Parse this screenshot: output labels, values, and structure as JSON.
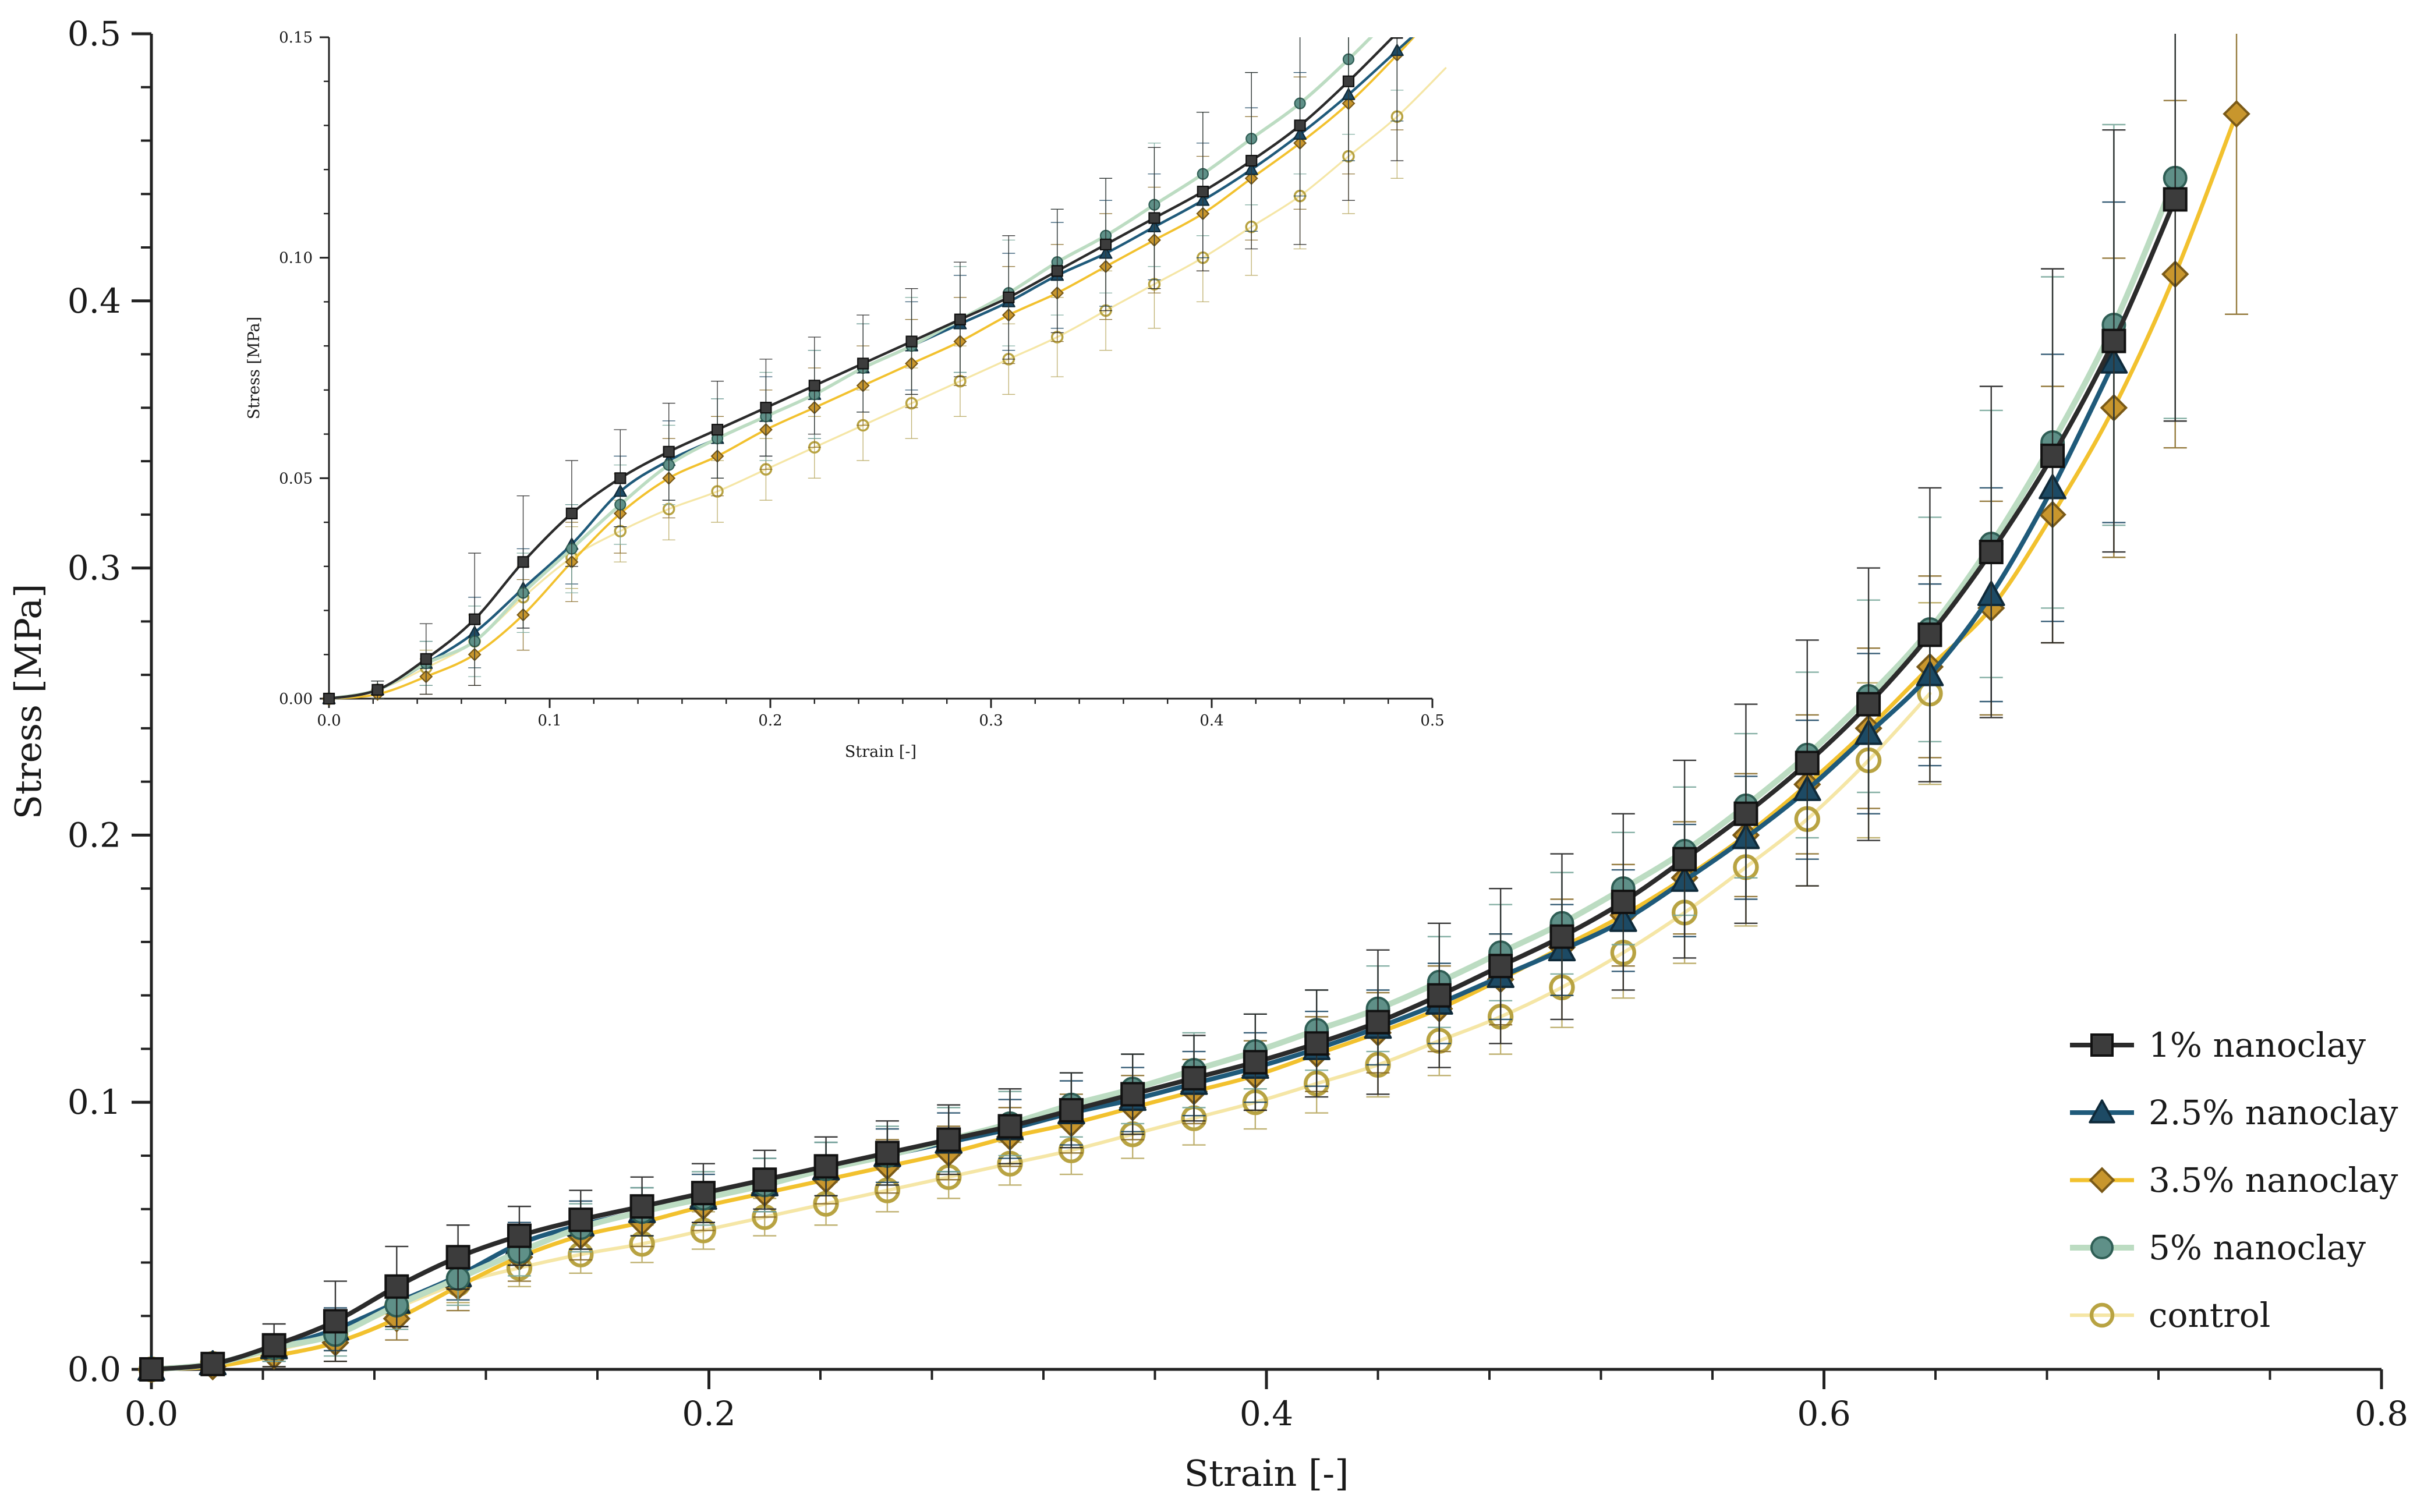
{
  "chart_data": [
    {
      "id": "main",
      "type": "line",
      "xlabel": "Strain [-]",
      "ylabel": "Stress [MPa]",
      "xlim": [
        0.0,
        0.8
      ],
      "ylim": [
        0.0,
        0.5
      ],
      "xticks": [
        "0.0",
        "0.2",
        "0.4",
        "0.6",
        "0.8"
      ],
      "yticks": [
        "0.0",
        "0.1",
        "0.2",
        "0.3",
        "0.4",
        "0.5"
      ],
      "grid": false,
      "legend_position": "bottom-right",
      "series": [
        {
          "name": "1% nanoclay",
          "marker": "square",
          "color": "#2b2b2b",
          "marker_fill": "#3a3a3a",
          "x": [
            0,
            0.022,
            0.044,
            0.066,
            0.088,
            0.11,
            0.132,
            0.154,
            0.176,
            0.198,
            0.22,
            0.242,
            0.264,
            0.286,
            0.308,
            0.33,
            0.352,
            0.374,
            0.396,
            0.418,
            0.44,
            0.462,
            0.484,
            0.506,
            0.528,
            0.55,
            0.572,
            0.594,
            0.616,
            0.638,
            0.66,
            0.682,
            0.704,
            0.726
          ],
          "y": [
            0,
            0.002,
            0.009,
            0.018,
            0.031,
            0.042,
            0.05,
            0.056,
            0.061,
            0.066,
            0.071,
            0.076,
            0.081,
            0.086,
            0.091,
            0.097,
            0.103,
            0.109,
            0.115,
            0.122,
            0.13,
            0.14,
            0.151,
            0.162,
            0.175,
            0.191,
            0.208,
            0.227,
            0.249,
            0.275,
            0.306,
            0.342,
            0.385,
            0.438
          ],
          "err": [
            0,
            0.002,
            0.008,
            0.015,
            0.015,
            0.012,
            0.011,
            0.011,
            0.011,
            0.011,
            0.011,
            0.011,
            0.012,
            0.013,
            0.014,
            0.014,
            0.015,
            0.016,
            0.018,
            0.02,
            0.027,
            0.027,
            0.029,
            0.031,
            0.033,
            0.037,
            0.041,
            0.046,
            0.051,
            0.055,
            0.062,
            0.07,
            0.079,
            0.083
          ]
        },
        {
          "name": "2.5% nanoclay",
          "marker": "triangle",
          "color": "#1f5a7a",
          "marker_fill": "#1f4f6a",
          "x": [
            0,
            0.022,
            0.044,
            0.066,
            0.088,
            0.11,
            0.132,
            0.154,
            0.176,
            0.198,
            0.22,
            0.242,
            0.264,
            0.286,
            0.308,
            0.33,
            0.352,
            0.374,
            0.396,
            0.418,
            0.44,
            0.462,
            0.484,
            0.506,
            0.528,
            0.55,
            0.572,
            0.594,
            0.616,
            0.638,
            0.66,
            0.682,
            0.704
          ],
          "y": [
            0,
            0.002,
            0.008,
            0.015,
            0.025,
            0.035,
            0.047,
            0.054,
            0.059,
            0.064,
            0.069,
            0.075,
            0.08,
            0.085,
            0.09,
            0.096,
            0.101,
            0.107,
            0.113,
            0.12,
            0.128,
            0.137,
            0.147,
            0.157,
            0.168,
            0.183,
            0.199,
            0.217,
            0.238,
            0.26,
            0.29,
            0.33,
            0.377
          ],
          "err": [
            0,
            0.002,
            0.005,
            0.008,
            0.009,
            0.009,
            0.008,
            0.009,
            0.009,
            0.009,
            0.01,
            0.01,
            0.01,
            0.011,
            0.011,
            0.012,
            0.012,
            0.012,
            0.013,
            0.014,
            0.014,
            0.015,
            0.016,
            0.017,
            0.019,
            0.021,
            0.023,
            0.026,
            0.03,
            0.034,
            0.04,
            0.05,
            0.06
          ]
        },
        {
          "name": "3.5% nanoclay",
          "marker": "diamond",
          "color": "#f2c12e",
          "marker_fill": "#c99a2e",
          "x": [
            0,
            0.022,
            0.044,
            0.066,
            0.088,
            0.11,
            0.132,
            0.154,
            0.176,
            0.198,
            0.22,
            0.242,
            0.264,
            0.286,
            0.308,
            0.33,
            0.352,
            0.374,
            0.396,
            0.418,
            0.44,
            0.462,
            0.484,
            0.506,
            0.528,
            0.55,
            0.572,
            0.594,
            0.616,
            0.638,
            0.66,
            0.682,
            0.704,
            0.726,
            0.748
          ],
          "y": [
            0,
            0.001,
            0.005,
            0.01,
            0.019,
            0.031,
            0.042,
            0.05,
            0.055,
            0.061,
            0.066,
            0.071,
            0.076,
            0.081,
            0.087,
            0.092,
            0.098,
            0.104,
            0.11,
            0.118,
            0.126,
            0.135,
            0.146,
            0.158,
            0.17,
            0.184,
            0.2,
            0.219,
            0.24,
            0.263,
            0.285,
            0.32,
            0.36,
            0.41,
            0.47
          ],
          "err": [
            0,
            0.001,
            0.004,
            0.007,
            0.008,
            0.009,
            0.009,
            0.009,
            0.009,
            0.009,
            0.009,
            0.009,
            0.01,
            0.01,
            0.011,
            0.011,
            0.012,
            0.012,
            0.013,
            0.014,
            0.015,
            0.016,
            0.017,
            0.018,
            0.019,
            0.021,
            0.023,
            0.026,
            0.03,
            0.034,
            0.04,
            0.048,
            0.056,
            0.065,
            0.075
          ]
        },
        {
          "name": "5% nanoclay",
          "marker": "circle",
          "color": "#bcdcc2",
          "marker_fill": "#5e8f88",
          "x": [
            0,
            0.022,
            0.044,
            0.066,
            0.088,
            0.11,
            0.132,
            0.154,
            0.176,
            0.198,
            0.22,
            0.242,
            0.264,
            0.286,
            0.308,
            0.33,
            0.352,
            0.374,
            0.396,
            0.418,
            0.44,
            0.462,
            0.484,
            0.506,
            0.528,
            0.55,
            0.572,
            0.594,
            0.616,
            0.638,
            0.66,
            0.682,
            0.704,
            0.726
          ],
          "y": [
            0,
            0.002,
            0.008,
            0.013,
            0.024,
            0.034,
            0.044,
            0.053,
            0.059,
            0.064,
            0.069,
            0.075,
            0.08,
            0.086,
            0.092,
            0.099,
            0.105,
            0.112,
            0.119,
            0.127,
            0.135,
            0.145,
            0.156,
            0.167,
            0.18,
            0.194,
            0.211,
            0.23,
            0.252,
            0.277,
            0.309,
            0.347,
            0.391,
            0.446
          ],
          "err": [
            0,
            0.002,
            0.005,
            0.008,
            0.009,
            0.01,
            0.009,
            0.009,
            0.009,
            0.01,
            0.01,
            0.01,
            0.011,
            0.012,
            0.012,
            0.012,
            0.013,
            0.014,
            0.014,
            0.015,
            0.016,
            0.017,
            0.018,
            0.019,
            0.021,
            0.024,
            0.027,
            0.031,
            0.036,
            0.042,
            0.05,
            0.062,
            0.075,
            0.09
          ]
        },
        {
          "name": "control",
          "marker": "circle-open",
          "color": "#f5e6a6",
          "marker_fill": "#b8a342",
          "x": [
            0,
            0.022,
            0.044,
            0.066,
            0.088,
            0.11,
            0.132,
            0.154,
            0.176,
            0.198,
            0.22,
            0.242,
            0.264,
            0.286,
            0.308,
            0.33,
            0.352,
            0.374,
            0.396,
            0.418,
            0.44,
            0.462,
            0.484,
            0.506,
            0.528,
            0.55,
            0.572,
            0.594,
            0.616,
            0.638
          ],
          "y": [
            0,
            0.002,
            0.007,
            0.013,
            0.023,
            0.032,
            0.038,
            0.043,
            0.047,
            0.052,
            0.057,
            0.062,
            0.067,
            0.072,
            0.077,
            0.082,
            0.088,
            0.094,
            0.1,
            0.107,
            0.114,
            0.123,
            0.132,
            0.143,
            0.156,
            0.171,
            0.188,
            0.206,
            0.228,
            0.253
          ],
          "err": [
            0,
            0.002,
            0.004,
            0.006,
            0.007,
            0.007,
            0.007,
            0.007,
            0.007,
            0.007,
            0.007,
            0.008,
            0.008,
            0.008,
            0.008,
            0.009,
            0.009,
            0.01,
            0.01,
            0.011,
            0.012,
            0.013,
            0.014,
            0.015,
            0.017,
            0.019,
            0.022,
            0.025,
            0.029,
            0.034
          ]
        }
      ]
    },
    {
      "id": "inset",
      "type": "line",
      "xlabel": "Strain [-]",
      "ylabel": "Stress [MPa]",
      "xlim": [
        0.0,
        0.5
      ],
      "ylim": [
        0.0,
        0.15
      ],
      "xticks": [
        "0.0",
        "0.1",
        "0.2",
        "0.3",
        "0.4",
        "0.5"
      ],
      "yticks": [
        "0.00",
        "0.05",
        "0.10",
        "0.15"
      ],
      "grid": false,
      "note_series": "same five series as main chart, zoomed to strain 0.0-0.5"
    }
  ]
}
